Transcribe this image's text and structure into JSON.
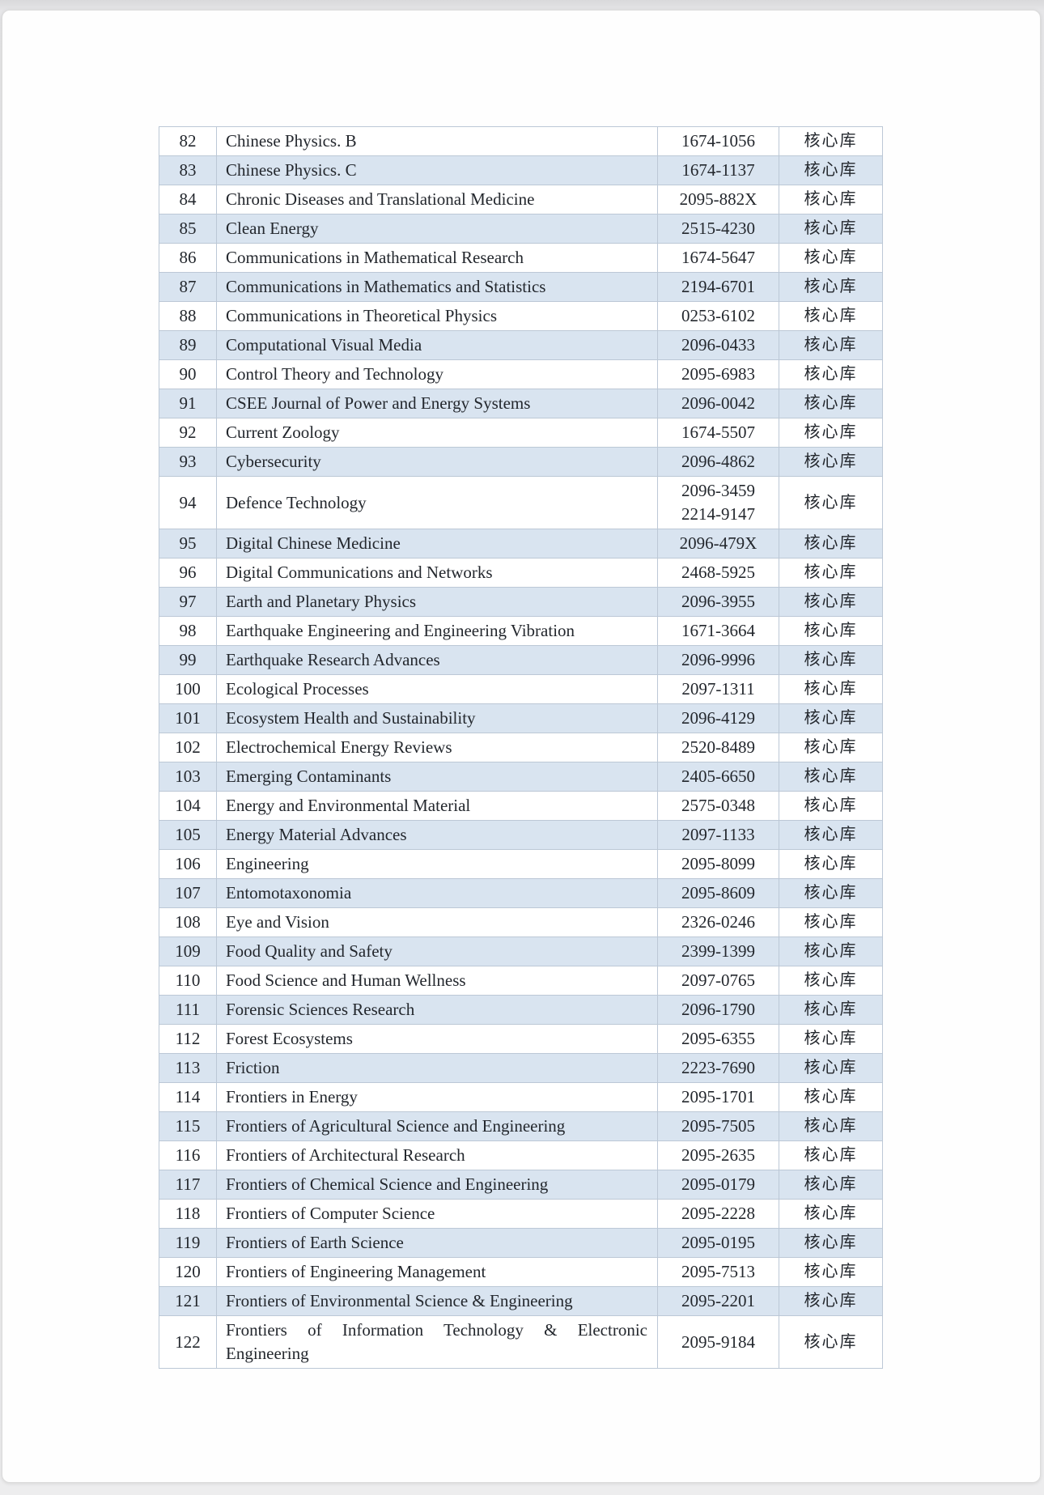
{
  "document": {
    "type": "scanned-journal-list-page",
    "status_label_all_rows": "核心库"
  },
  "colors": {
    "stripe": "#d9e4f0",
    "border": "#bcc8d6",
    "text": "#23272d",
    "page": "#fefefe",
    "surround": "#e6e6e8"
  },
  "table": {
    "rows": [
      {
        "num": "82",
        "name": "Chinese Physics. B",
        "issn": [
          "1674-1056"
        ],
        "status": "核心库"
      },
      {
        "num": "83",
        "name": "Chinese Physics. C",
        "issn": [
          "1674-1137"
        ],
        "status": "核心库"
      },
      {
        "num": "84",
        "name": "Chronic Diseases and Translational Medicine",
        "issn": [
          "2095-882X"
        ],
        "status": "核心库"
      },
      {
        "num": "85",
        "name": "Clean Energy",
        "issn": [
          "2515-4230"
        ],
        "status": "核心库"
      },
      {
        "num": "86",
        "name": "Communications in Mathematical Research",
        "issn": [
          "1674-5647"
        ],
        "status": "核心库"
      },
      {
        "num": "87",
        "name": "Communications in Mathematics and Statistics",
        "issn": [
          "2194-6701"
        ],
        "status": "核心库"
      },
      {
        "num": "88",
        "name": "Communications in Theoretical Physics",
        "issn": [
          "0253-6102"
        ],
        "status": "核心库"
      },
      {
        "num": "89",
        "name": "Computational Visual Media",
        "issn": [
          "2096-0433"
        ],
        "status": "核心库"
      },
      {
        "num": "90",
        "name": "Control Theory and Technology",
        "issn": [
          "2095-6983"
        ],
        "status": "核心库"
      },
      {
        "num": "91",
        "name": "CSEE Journal of Power and Energy Systems",
        "issn": [
          "2096-0042"
        ],
        "status": "核心库"
      },
      {
        "num": "92",
        "name": "Current Zoology",
        "issn": [
          "1674-5507"
        ],
        "status": "核心库"
      },
      {
        "num": "93",
        "name": "Cybersecurity",
        "issn": [
          "2096-4862"
        ],
        "status": "核心库"
      },
      {
        "num": "94",
        "name": "Defence Technology",
        "issn": [
          "2096-3459",
          "2214-9147"
        ],
        "status": "核心库"
      },
      {
        "num": "95",
        "name": "Digital Chinese Medicine",
        "issn": [
          "2096-479X"
        ],
        "status": "核心库"
      },
      {
        "num": "96",
        "name": "Digital Communications and Networks",
        "issn": [
          "2468-5925"
        ],
        "status": "核心库"
      },
      {
        "num": "97",
        "name": "Earth and Planetary Physics",
        "issn": [
          "2096-3955"
        ],
        "status": "核心库"
      },
      {
        "num": "98",
        "name": "Earthquake Engineering and Engineering Vibration",
        "issn": [
          "1671-3664"
        ],
        "status": "核心库"
      },
      {
        "num": "99",
        "name": "Earthquake Research Advances",
        "issn": [
          "2096-9996"
        ],
        "status": "核心库"
      },
      {
        "num": "100",
        "name": "Ecological Processes",
        "issn": [
          "2097-1311"
        ],
        "status": "核心库"
      },
      {
        "num": "101",
        "name": "Ecosystem Health and Sustainability",
        "issn": [
          "2096-4129"
        ],
        "status": "核心库"
      },
      {
        "num": "102",
        "name": "Electrochemical Energy Reviews",
        "issn": [
          "2520-8489"
        ],
        "status": "核心库"
      },
      {
        "num": "103",
        "name": "Emerging Contaminants",
        "issn": [
          "2405-6650"
        ],
        "status": "核心库"
      },
      {
        "num": "104",
        "name": "Energy and Environmental Material",
        "issn": [
          "2575-0348"
        ],
        "status": "核心库"
      },
      {
        "num": "105",
        "name": "Energy Material Advances",
        "issn": [
          "2097-1133"
        ],
        "status": "核心库"
      },
      {
        "num": "106",
        "name": "Engineering",
        "issn": [
          "2095-8099"
        ],
        "status": "核心库"
      },
      {
        "num": "107",
        "name": "Entomotaxonomia",
        "issn": [
          "2095-8609"
        ],
        "status": "核心库"
      },
      {
        "num": "108",
        "name": "Eye and Vision",
        "issn": [
          "2326-0246"
        ],
        "status": "核心库"
      },
      {
        "num": "109",
        "name": "Food Quality and Safety",
        "issn": [
          "2399-1399"
        ],
        "status": "核心库"
      },
      {
        "num": "110",
        "name": "Food Science and Human Wellness",
        "issn": [
          "2097-0765"
        ],
        "status": "核心库"
      },
      {
        "num": "111",
        "name": "Forensic Sciences Research",
        "issn": [
          "2096-1790"
        ],
        "status": "核心库"
      },
      {
        "num": "112",
        "name": "Forest Ecosystems",
        "issn": [
          "2095-6355"
        ],
        "status": "核心库"
      },
      {
        "num": "113",
        "name": "Friction",
        "issn": [
          "2223-7690"
        ],
        "status": "核心库"
      },
      {
        "num": "114",
        "name": "Frontiers in Energy",
        "issn": [
          "2095-1701"
        ],
        "status": "核心库"
      },
      {
        "num": "115",
        "name": "Frontiers of Agricultural Science and Engineering",
        "issn": [
          "2095-7505"
        ],
        "status": "核心库"
      },
      {
        "num": "116",
        "name": "Frontiers of Architectural Research",
        "issn": [
          "2095-2635"
        ],
        "status": "核心库"
      },
      {
        "num": "117",
        "name": "Frontiers of Chemical Science and Engineering",
        "issn": [
          "2095-0179"
        ],
        "status": "核心库"
      },
      {
        "num": "118",
        "name": "Frontiers of Computer Science",
        "issn": [
          "2095-2228"
        ],
        "status": "核心库"
      },
      {
        "num": "119",
        "name": "Frontiers of Earth Science",
        "issn": [
          "2095-0195"
        ],
        "status": "核心库"
      },
      {
        "num": "120",
        "name": "Frontiers of Engineering Management",
        "issn": [
          "2095-7513"
        ],
        "status": "核心库"
      },
      {
        "num": "121",
        "name": "Frontiers of Environmental Science & Engineering",
        "issn": [
          "2095-2201"
        ],
        "status": "核心库"
      },
      {
        "num": "122",
        "name": "Frontiers of Information Technology & Electronic Engineering",
        "issn": [
          "2095-9184"
        ],
        "status": "核心库"
      }
    ]
  }
}
